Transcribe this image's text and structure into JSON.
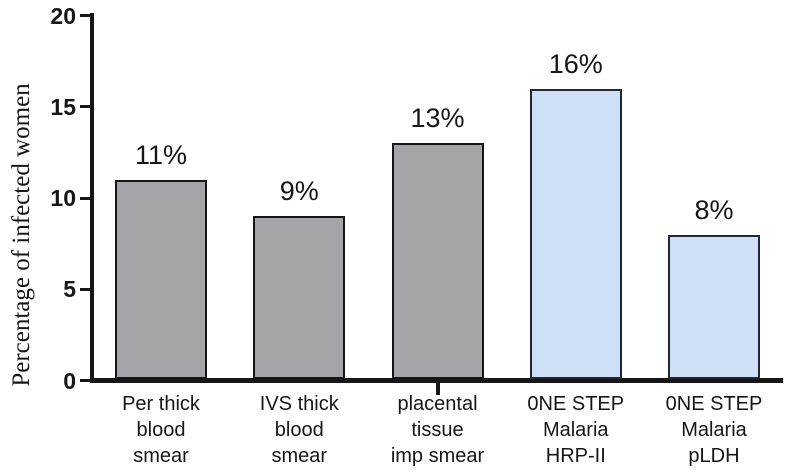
{
  "chart_data": {
    "type": "bar",
    "title": "",
    "xlabel": "",
    "ylabel": "Percentage of infected women",
    "ylim": [
      0,
      20
    ],
    "yticks": [
      0,
      5,
      10,
      15,
      20
    ],
    "grid": false,
    "legend_position": "none",
    "categories": [
      "Per thick\nblood\nsmear",
      "IVS thick\nblood\nsmear",
      "placental\ntissue\nimp smear",
      "0NE STEP\nMalaria\nHRP-II",
      "0NE STEP\nMalaria\npLDH"
    ],
    "values": [
      11,
      9,
      13,
      16,
      8
    ],
    "value_labels": [
      "11%",
      "9%",
      "13%",
      "16%",
      "8%"
    ],
    "bars": [
      {
        "fill": "#a5a4a9",
        "border": "#151515"
      },
      {
        "fill": "#a5a4a9",
        "border": "#151515"
      },
      {
        "fill": "#a5a4a9",
        "border": "#151515"
      },
      {
        "fill": "#cee0f6",
        "border": "#23262f"
      },
      {
        "fill": "#cee0f6",
        "border": "#23262f"
      }
    ]
  },
  "colors": {
    "axis": "#161616",
    "text": "#161616",
    "background": "#ffffff"
  }
}
